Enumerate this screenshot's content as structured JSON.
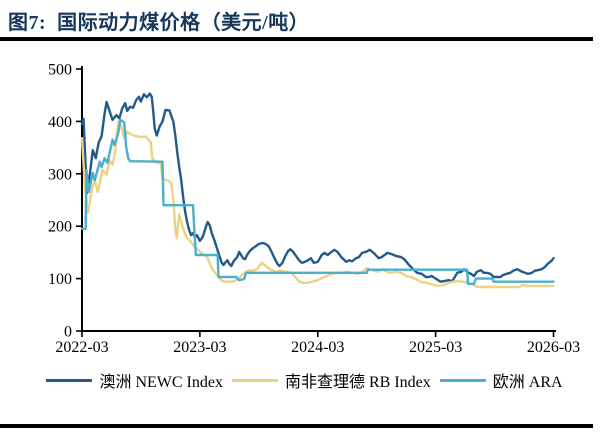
{
  "figure": {
    "title": "图7:  国际动力煤价格（美元/吨）",
    "title_color": "#17375D",
    "rule_color": "#000000"
  },
  "chart_data": {
    "type": "line",
    "title": "国际动力煤价格（美元/吨）",
    "unit": "美元/吨",
    "grid": false,
    "legend_position": "bottom",
    "x_axis": {
      "ticks": [
        "2022-03",
        "2023-03",
        "2024-03",
        "2025-03",
        "2026-03"
      ],
      "tick_months": [
        0,
        12,
        24,
        36,
        48
      ],
      "range_months": [
        0,
        48
      ]
    },
    "y_axis": {
      "ticks": [
        0,
        100,
        200,
        300,
        400,
        500
      ],
      "range": [
        0,
        500
      ]
    },
    "axis_color": "#000000",
    "series": [
      {
        "name": "澳洲 NEWC Index",
        "color": "#235A89",
        "points": [
          [
            0,
            395
          ],
          [
            0.15,
            405
          ],
          [
            0.5,
            263
          ],
          [
            0.8,
            300
          ],
          [
            1.1,
            345
          ],
          [
            1.4,
            330
          ],
          [
            1.7,
            360
          ],
          [
            2,
            372
          ],
          [
            2.3,
            415
          ],
          [
            2.5,
            437
          ],
          [
            2.8,
            420
          ],
          [
            3.1,
            403
          ],
          [
            3.5,
            412
          ],
          [
            3.8,
            406
          ],
          [
            4.1,
            425
          ],
          [
            4.4,
            435
          ],
          [
            4.6,
            420
          ],
          [
            4.9,
            428
          ],
          [
            5.2,
            426
          ],
          [
            5.5,
            440
          ],
          [
            5.8,
            447
          ],
          [
            6,
            438
          ],
          [
            6.3,
            452
          ],
          [
            6.6,
            446
          ],
          [
            6.9,
            453
          ],
          [
            7.1,
            447
          ],
          [
            7.25,
            420
          ],
          [
            7.4,
            387
          ],
          [
            7.6,
            373
          ],
          [
            7.9,
            390
          ],
          [
            8.2,
            400
          ],
          [
            8.5,
            422
          ],
          [
            8.9,
            421
          ],
          [
            9.1,
            410
          ],
          [
            9.3,
            399
          ],
          [
            9.5,
            373
          ],
          [
            9.7,
            340
          ],
          [
            9.9,
            313
          ],
          [
            10.1,
            288
          ],
          [
            10.3,
            255
          ],
          [
            10.5,
            228
          ],
          [
            10.7,
            208
          ],
          [
            10.9,
            193
          ],
          [
            11.1,
            183
          ],
          [
            11.3,
            187
          ],
          [
            11.5,
            178
          ],
          [
            11.7,
            183
          ],
          [
            12,
            172
          ],
          [
            12.3,
            180
          ],
          [
            12.6,
            198
          ],
          [
            12.8,
            208
          ],
          [
            13,
            202
          ],
          [
            13.2,
            187
          ],
          [
            13.5,
            172
          ],
          [
            13.7,
            160
          ],
          [
            14,
            143
          ],
          [
            14.2,
            131
          ],
          [
            14.4,
            126
          ],
          [
            14.6,
            131
          ],
          [
            14.8,
            135
          ],
          [
            15,
            128
          ],
          [
            15.2,
            124
          ],
          [
            15.4,
            132
          ],
          [
            15.6,
            137
          ],
          [
            15.8,
            141
          ],
          [
            16,
            151
          ],
          [
            16.2,
            145
          ],
          [
            16.4,
            139
          ],
          [
            16.6,
            137
          ],
          [
            16.8,
            145
          ],
          [
            17.1,
            153
          ],
          [
            17.4,
            158
          ],
          [
            17.7,
            162
          ],
          [
            18,
            166
          ],
          [
            18.4,
            168
          ],
          [
            18.7,
            166
          ],
          [
            19,
            162
          ],
          [
            19.3,
            151
          ],
          [
            19.6,
            139
          ],
          [
            19.9,
            128
          ],
          [
            20.1,
            124
          ],
          [
            20.4,
            130
          ],
          [
            20.7,
            143
          ],
          [
            21,
            153
          ],
          [
            21.2,
            156
          ],
          [
            21.5,
            151
          ],
          [
            21.8,
            143
          ],
          [
            22.1,
            135
          ],
          [
            22.4,
            130
          ],
          [
            22.7,
            132
          ],
          [
            23,
            135
          ],
          [
            23.3,
            139
          ],
          [
            23.6,
            130
          ],
          [
            24,
            132
          ],
          [
            24.4,
            145
          ],
          [
            24.7,
            149
          ],
          [
            25,
            145
          ],
          [
            25.4,
            151
          ],
          [
            25.7,
            155
          ],
          [
            26,
            151
          ],
          [
            26.4,
            141
          ],
          [
            26.9,
            132
          ],
          [
            27.2,
            135
          ],
          [
            27.5,
            133
          ],
          [
            27.9,
            139
          ],
          [
            28.2,
            141
          ],
          [
            28.5,
            149
          ],
          [
            28.9,
            151
          ],
          [
            29.3,
            155
          ],
          [
            29.7,
            149
          ],
          [
            30.2,
            139
          ],
          [
            30.5,
            141
          ],
          [
            31.1,
            149
          ],
          [
            31.5,
            147
          ],
          [
            32,
            143
          ],
          [
            32.5,
            141
          ],
          [
            32.8,
            137
          ],
          [
            33.3,
            126
          ],
          [
            33.6,
            120
          ],
          [
            34.1,
            111
          ],
          [
            34.6,
            109
          ],
          [
            35,
            103
          ],
          [
            35.3,
            103
          ],
          [
            35.6,
            105
          ],
          [
            36.1,
            99
          ],
          [
            36.5,
            94
          ],
          [
            36.8,
            95
          ],
          [
            37.3,
            97
          ],
          [
            37.7,
            95
          ],
          [
            38.2,
            111
          ],
          [
            38.6,
            113
          ],
          [
            38.9,
            118
          ],
          [
            39.2,
            113
          ],
          [
            39.6,
            109
          ],
          [
            39.9,
            105
          ],
          [
            40.2,
            113
          ],
          [
            40.6,
            116
          ],
          [
            40.9,
            111
          ],
          [
            41.2,
            111
          ],
          [
            41.6,
            109
          ],
          [
            41.9,
            103
          ],
          [
            42.2,
            103
          ],
          [
            42.6,
            103
          ],
          [
            42.9,
            107
          ],
          [
            43.2,
            109
          ],
          [
            43.6,
            111
          ],
          [
            43.9,
            115
          ],
          [
            44.3,
            118
          ],
          [
            44.8,
            113
          ],
          [
            45.1,
            111
          ],
          [
            45.4,
            109
          ],
          [
            45.8,
            111
          ],
          [
            46.1,
            115
          ],
          [
            46.4,
            116
          ],
          [
            46.8,
            118
          ],
          [
            47.1,
            122
          ],
          [
            47.4,
            128
          ],
          [
            47.8,
            134
          ],
          [
            48,
            139
          ]
        ]
      },
      {
        "name": "南非查理德 RB Index",
        "color": "#EFD183",
        "points": [
          [
            0,
            368
          ],
          [
            0.3,
            275
          ],
          [
            0.6,
            225
          ],
          [
            1,
            269
          ],
          [
            1.3,
            288
          ],
          [
            1.6,
            265
          ],
          [
            2.1,
            307
          ],
          [
            2.5,
            298
          ],
          [
            2.8,
            326
          ],
          [
            3.1,
            317
          ],
          [
            3.4,
            345
          ],
          [
            3.7,
            400
          ],
          [
            4,
            390
          ],
          [
            4.3,
            368
          ],
          [
            4.6,
            380
          ],
          [
            5,
            375
          ],
          [
            5.5,
            372
          ],
          [
            6,
            370
          ],
          [
            6.5,
            371
          ],
          [
            7,
            360
          ],
          [
            7.15,
            330
          ],
          [
            7.5,
            322
          ],
          [
            8,
            321
          ],
          [
            8.2,
            290
          ],
          [
            8.9,
            286
          ],
          [
            9.1,
            280
          ],
          [
            9.3,
            250
          ],
          [
            9.5,
            195
          ],
          [
            9.65,
            177
          ],
          [
            9.9,
            223
          ],
          [
            10.2,
            202
          ],
          [
            10.6,
            180
          ],
          [
            11,
            172
          ],
          [
            11.4,
            162
          ],
          [
            11.8,
            155
          ],
          [
            12.2,
            148
          ],
          [
            12.5,
            145
          ],
          [
            12.8,
            139
          ],
          [
            13.2,
            120
          ],
          [
            13.6,
            110
          ],
          [
            14,
            101
          ],
          [
            14.3,
            95
          ],
          [
            14.7,
            94
          ],
          [
            15.1,
            94
          ],
          [
            15.5,
            95
          ],
          [
            15.9,
            99
          ],
          [
            16.3,
            107
          ],
          [
            16.7,
            113
          ],
          [
            17,
            116
          ],
          [
            17.4,
            115
          ],
          [
            17.8,
            118
          ],
          [
            18.3,
            130
          ],
          [
            18.6,
            126
          ],
          [
            19,
            120
          ],
          [
            19.3,
            116
          ],
          [
            19.8,
            113
          ],
          [
            20.2,
            115
          ],
          [
            20.8,
            113
          ],
          [
            21.3,
            111
          ],
          [
            21.8,
            101
          ],
          [
            22.1,
            94
          ],
          [
            22.5,
            92
          ],
          [
            23,
            92
          ],
          [
            23.5,
            94
          ],
          [
            24,
            97
          ],
          [
            24.7,
            103
          ],
          [
            25.2,
            107
          ],
          [
            25.9,
            111
          ],
          [
            26.5,
            111
          ],
          [
            27,
            113
          ],
          [
            27.5,
            111
          ],
          [
            28,
            109
          ],
          [
            28.5,
            111
          ],
          [
            29,
            120
          ],
          [
            29.5,
            116
          ],
          [
            30.2,
            113
          ],
          [
            30.6,
            118
          ],
          [
            31,
            113
          ],
          [
            31.5,
            111
          ],
          [
            32,
            113
          ],
          [
            32.5,
            111
          ],
          [
            33,
            105
          ],
          [
            33.5,
            103
          ],
          [
            34,
            99
          ],
          [
            34.5,
            94
          ],
          [
            35,
            92
          ],
          [
            35.8,
            88
          ],
          [
            36.3,
            86
          ],
          [
            36.8,
            88
          ],
          [
            37.3,
            92
          ],
          [
            37.8,
            94
          ],
          [
            38.3,
            95
          ],
          [
            38.8,
            94
          ],
          [
            39.3,
            92
          ],
          [
            39.8,
            88
          ],
          [
            40.3,
            84
          ],
          [
            41.5,
            84
          ],
          [
            43,
            84
          ],
          [
            44.5,
            84
          ],
          [
            44.9,
            88
          ],
          [
            45.2,
            86
          ],
          [
            46.5,
            86
          ],
          [
            48,
            86
          ]
        ]
      },
      {
        "name": "欧洲 ARA",
        "color": "#4BB0CB",
        "points": [
          [
            0,
            195
          ],
          [
            0.38,
            195
          ],
          [
            0.45,
            307
          ],
          [
            0.7,
            265
          ],
          [
            1.1,
            302
          ],
          [
            1.3,
            288
          ],
          [
            1.8,
            323
          ],
          [
            2,
            313
          ],
          [
            2.3,
            330
          ],
          [
            2.6,
            321
          ],
          [
            3.1,
            365
          ],
          [
            3.3,
            355
          ],
          [
            3.7,
            378
          ],
          [
            3.9,
            403
          ],
          [
            4.3,
            398
          ],
          [
            4.5,
            351
          ],
          [
            4.7,
            330
          ],
          [
            4.9,
            324
          ],
          [
            8.2,
            323
          ],
          [
            8.3,
            240
          ],
          [
            11.3,
            240
          ],
          [
            11.45,
            187
          ],
          [
            11.6,
            145
          ],
          [
            13.8,
            145
          ],
          [
            13.9,
            103
          ],
          [
            15.7,
            103
          ],
          [
            16,
            97
          ],
          [
            16.5,
            99
          ],
          [
            16.7,
            111
          ],
          [
            29,
            111
          ],
          [
            29.1,
            117
          ],
          [
            39.2,
            117
          ],
          [
            39.3,
            90
          ],
          [
            39.9,
            90
          ],
          [
            40.1,
            100
          ],
          [
            41.8,
            100
          ],
          [
            41.9,
            94
          ],
          [
            48,
            94
          ]
        ]
      }
    ]
  },
  "legend": {
    "items": [
      "澳洲 NEWC Index",
      "南非查理德 RB Index",
      "欧洲 ARA"
    ]
  }
}
